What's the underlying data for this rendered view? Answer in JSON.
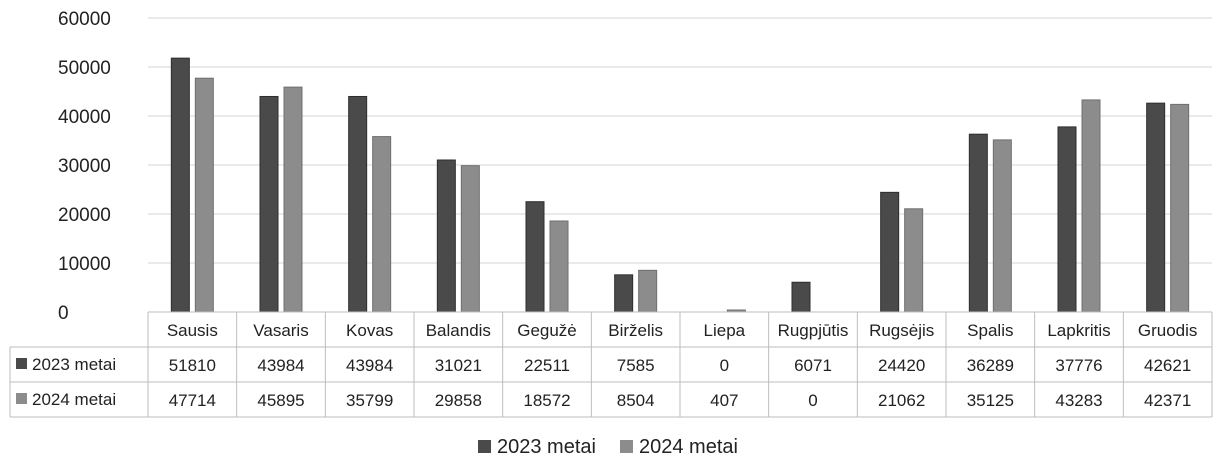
{
  "chart_data": {
    "type": "bar",
    "categories": [
      "Sausis",
      "Vasaris",
      "Kovas",
      "Balandis",
      "Gegužė",
      "Birželis",
      "Liepa",
      "Rugpjūtis",
      "Rugsėjis",
      "Spalis",
      "Lapkritis",
      "Gruodis"
    ],
    "series": [
      {
        "name": "2023 metai",
        "values": [
          51810,
          43984,
          43984,
          31021,
          22511,
          7585,
          0,
          6071,
          24420,
          36289,
          37776,
          42621
        ],
        "color": "#4a4a4a"
      },
      {
        "name": "2024 metai",
        "values": [
          47714,
          45895,
          35799,
          29858,
          18572,
          8504,
          407,
          0,
          21062,
          35125,
          43283,
          42371
        ],
        "color": "#8c8c8c"
      }
    ],
    "ylim": [
      0,
      60000
    ],
    "yticks": [
      "60000",
      "50000",
      "40000",
      "30000",
      "20000",
      "10000",
      "0"
    ],
    "grid": true,
    "data_table": true,
    "legend_position": "bottom"
  }
}
